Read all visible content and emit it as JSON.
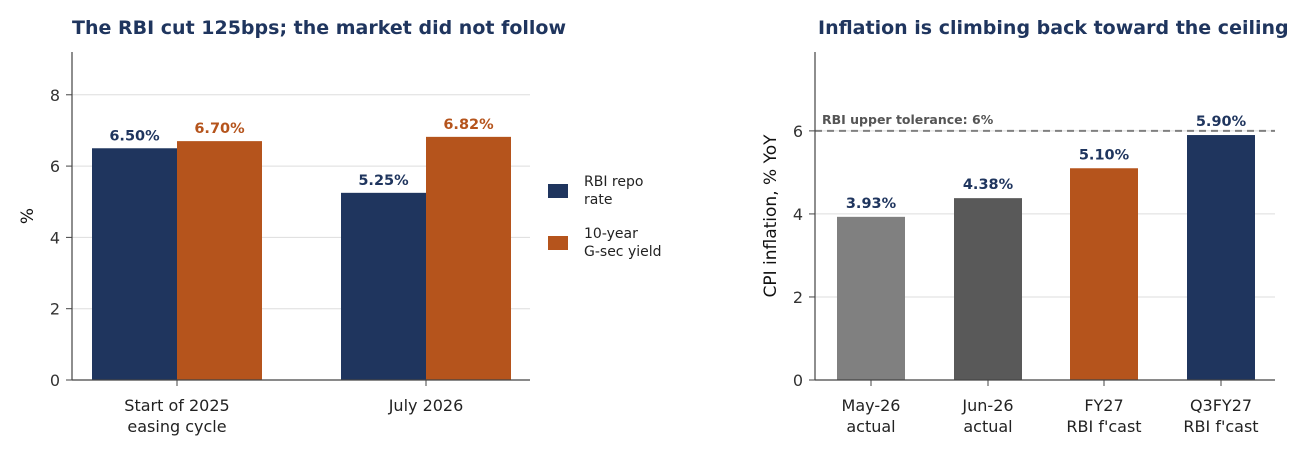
{
  "chart_data": [
    {
      "type": "bar",
      "title": "The RBI cut 125bps; the market did not follow",
      "ylabel": "%",
      "xlabel": "",
      "ylim": [
        0,
        9.2
      ],
      "yticks": [
        0,
        2,
        4,
        6,
        8
      ],
      "grid": true,
      "legend_placement": "right",
      "categories": [
        [
          "Start of 2025",
          "easing cycle"
        ],
        [
          "July 2026"
        ]
      ],
      "series": [
        {
          "name": "RBI repo rate",
          "legend_lines": [
            "RBI repo",
            "rate"
          ],
          "color": "#1f355e",
          "values": [
            6.5,
            5.25
          ],
          "labels": [
            "6.50%",
            "5.25%"
          ]
        },
        {
          "name": "10-year G-sec yield",
          "legend_lines": [
            "10-year",
            "G-sec yield"
          ],
          "color": "#b5541c",
          "values": [
            6.7,
            6.82
          ],
          "labels": [
            "6.70%",
            "6.82%"
          ]
        }
      ]
    },
    {
      "type": "bar",
      "title": "Inflation is climbing back toward the ceiling",
      "ylabel": "CPI inflation, % YoY",
      "xlabel": "",
      "ylim": [
        0,
        7.9
      ],
      "yticks": [
        0,
        2,
        4,
        6
      ],
      "grid": true,
      "categories": [
        [
          "May-26",
          "actual"
        ],
        [
          "Jun-26",
          "actual"
        ],
        [
          "FY27",
          "RBI f'cast"
        ],
        [
          "Q3FY27",
          "RBI f'cast"
        ]
      ],
      "values": [
        3.93,
        4.38,
        5.1,
        5.9
      ],
      "labels": [
        "3.93%",
        "4.38%",
        "5.10%",
        "5.90%"
      ],
      "colors": [
        "#808080",
        "#595959",
        "#b5541c",
        "#1f355e"
      ],
      "label_colors": [
        "#1f355e",
        "#1f355e",
        "#1f355e",
        "#1f355e"
      ],
      "reference_line": {
        "value": 6,
        "label": "RBI upper tolerance: 6%",
        "color": "#808080",
        "style": "dashed"
      }
    }
  ]
}
